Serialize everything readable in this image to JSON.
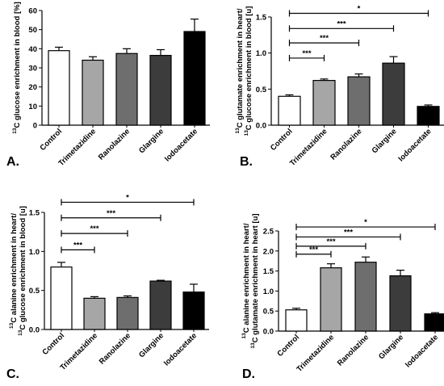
{
  "figure": {
    "bar_colors": [
      "#ffffff",
      "#a6a6a6",
      "#6e6e6e",
      "#3c3c3c",
      "#000000"
    ]
  },
  "chart_data": [
    {
      "panel": "A.",
      "type": "bar",
      "categories": [
        "Control",
        "Trimetazidine",
        "Ranolazine",
        "Glargine",
        "Iodoacetate"
      ],
      "values": [
        39,
        34,
        37.5,
        36.5,
        49
      ],
      "errors": [
        1.8,
        1.8,
        2.5,
        3,
        6.5
      ],
      "ylabel_sup": "13",
      "ylabel": "C glucose enrichment in blood [%]",
      "ylabel2": "",
      "ylim": [
        0,
        60
      ],
      "yticks": [
        "0",
        "10",
        "20",
        "30",
        "40",
        "50",
        "60"
      ],
      "brackets": []
    },
    {
      "panel": "B.",
      "type": "bar",
      "categories": [
        "Control",
        "Trimetazidine",
        "Ranolazine",
        "Glargine",
        "Iodoacetate"
      ],
      "values": [
        0.4,
        0.62,
        0.67,
        0.86,
        0.26
      ],
      "errors": [
        0.02,
        0.02,
        0.04,
        0.09,
        0.02
      ],
      "ylabel_sup": "13",
      "ylabel": "C glutamate enrichment in heart/",
      "ylabel2": "C glucose enrichment in blood [u]",
      "ylim": [
        0,
        1.5
      ],
      "yticks": [
        "0.0",
        "0.5",
        "1.0",
        "1.5"
      ],
      "brackets": [
        {
          "from": 0,
          "to": 1,
          "y": 0.93,
          "label": "***"
        },
        {
          "from": 0,
          "to": 2,
          "y": 1.14,
          "label": "***"
        },
        {
          "from": 0,
          "to": 3,
          "y": 1.34,
          "label": "***"
        },
        {
          "from": 0,
          "to": 4,
          "y": 1.55,
          "label": "*"
        }
      ]
    },
    {
      "panel": "C.",
      "type": "bar",
      "categories": [
        "Control",
        "Trimetazidine",
        "Ranolazine",
        "Glargine",
        "Iodoacetate"
      ],
      "values": [
        0.8,
        0.4,
        0.41,
        0.62,
        0.48
      ],
      "errors": [
        0.06,
        0.02,
        0.02,
        0.01,
        0.1
      ],
      "ylabel_sup": "13",
      "ylabel": "C alanine enrichment in heart/",
      "ylabel2": "C glucose enrichment in blood [u]",
      "ylim": [
        0,
        1.5
      ],
      "yticks": [
        "0.0",
        "0.5",
        "1.0",
        "1.5"
      ],
      "brackets": [
        {
          "from": 0,
          "to": 1,
          "y": 1.02,
          "label": "***"
        },
        {
          "from": 0,
          "to": 2,
          "y": 1.23,
          "label": "***"
        },
        {
          "from": 0,
          "to": 3,
          "y": 1.43,
          "label": "***"
        },
        {
          "from": 0,
          "to": 4,
          "y": 1.63,
          "label": "*"
        }
      ]
    },
    {
      "panel": "D.",
      "type": "bar",
      "categories": [
        "Control",
        "Trimetazidine",
        "Ranolazine",
        "Glargine",
        "Iodoacetate"
      ],
      "values": [
        0.53,
        1.58,
        1.72,
        1.38,
        0.43
      ],
      "errors": [
        0.04,
        0.1,
        0.13,
        0.14,
        0.03
      ],
      "ylabel_sup": "13",
      "ylabel": "C glutamate enrichment in heart [u]",
      "ylabel2": "C alanine enrichment in heart/",
      "ylabel2_first": true,
      "ylim": [
        0,
        2.5
      ],
      "yticks": [
        "0.0",
        "0.5",
        "1.0",
        "1.5",
        "2.0",
        "2.5"
      ],
      "brackets": [
        {
          "from": 0,
          "to": 1,
          "y": 1.92,
          "label": "***"
        },
        {
          "from": 0,
          "to": 2,
          "y": 2.12,
          "label": "***"
        },
        {
          "from": 0,
          "to": 3,
          "y": 2.35,
          "label": "***"
        },
        {
          "from": 0,
          "to": 4,
          "y": 2.6,
          "label": "*"
        }
      ]
    }
  ]
}
